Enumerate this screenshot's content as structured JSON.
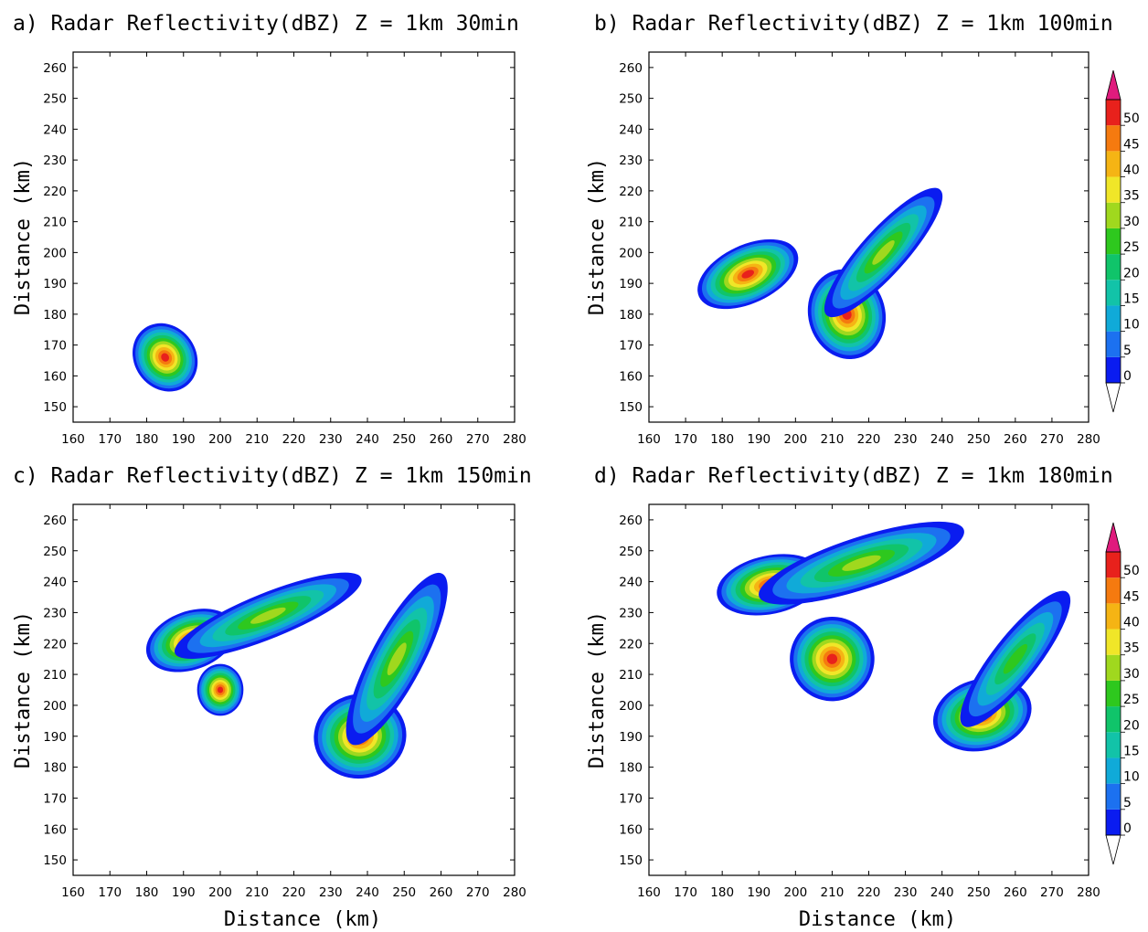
{
  "chart_data": [
    {
      "panel": "a",
      "type": "filled-contour",
      "title": "a) Radar Reflectivity(dBZ) Z = 1km 30min",
      "xlabel": "",
      "ylabel": "Distance (km)",
      "xlim": [
        160,
        280
      ],
      "ylim": [
        145,
        265
      ],
      "xticks": [
        160,
        170,
        180,
        190,
        200,
        210,
        220,
        230,
        240,
        250,
        260,
        270,
        280
      ],
      "yticks": [
        150,
        160,
        170,
        180,
        190,
        200,
        210,
        220,
        230,
        240,
        250,
        260
      ],
      "cells": [
        {
          "cx": 185,
          "cy": 166,
          "rx": 8,
          "ry": 11,
          "angle": 35,
          "max_dbz": 50
        }
      ],
      "colorbar": false
    },
    {
      "panel": "b",
      "type": "filled-contour",
      "title": "b) Radar Reflectivity(dBZ) Z = 1km 100min",
      "xlabel": "",
      "ylabel": "Distance (km)",
      "xlim": [
        160,
        280
      ],
      "ylim": [
        145,
        265
      ],
      "xticks": [
        160,
        170,
        180,
        190,
        200,
        210,
        220,
        230,
        240,
        250,
        260,
        270,
        280
      ],
      "yticks": [
        150,
        160,
        170,
        180,
        190,
        200,
        210,
        220,
        230,
        240,
        250,
        260
      ],
      "cells": [
        {
          "cx": 187,
          "cy": 193,
          "rx": 14,
          "ry": 9,
          "angle": 25,
          "max_dbz": 50
        },
        {
          "cx": 214,
          "cy": 180,
          "rx": 10,
          "ry": 14,
          "angle": 15,
          "max_dbz": 50
        },
        {
          "cx": 224,
          "cy": 200,
          "rx": 22,
          "ry": 7,
          "angle": 48,
          "max_dbz": 30
        }
      ],
      "colorbar": true
    },
    {
      "panel": "c",
      "type": "filled-contour",
      "title": "c) Radar Reflectivity(dBZ) Z = 1km 150min",
      "xlabel": "Distance (km)",
      "ylabel": "Distance (km)",
      "xlim": [
        160,
        280
      ],
      "ylim": [
        145,
        265
      ],
      "xticks": [
        160,
        170,
        180,
        190,
        200,
        210,
        220,
        230,
        240,
        250,
        260,
        270,
        280
      ],
      "yticks": [
        150,
        160,
        170,
        180,
        190,
        200,
        210,
        220,
        230,
        240,
        250,
        260
      ],
      "cells": [
        {
          "cx": 192,
          "cy": 221,
          "rx": 12,
          "ry": 9,
          "angle": 20,
          "max_dbz": 50
        },
        {
          "cx": 213,
          "cy": 229,
          "rx": 26,
          "ry": 7,
          "angle": 22,
          "max_dbz": 30
        },
        {
          "cx": 200,
          "cy": 205,
          "rx": 6,
          "ry": 8,
          "angle": 0,
          "max_dbz": 50
        },
        {
          "cx": 238,
          "cy": 190,
          "rx": 12,
          "ry": 13,
          "angle": 10,
          "max_dbz": 50
        },
        {
          "cx": 248,
          "cy": 215,
          "rx": 25,
          "ry": 8,
          "angle": 62,
          "max_dbz": 30
        }
      ],
      "colorbar": false
    },
    {
      "panel": "d",
      "type": "filled-contour",
      "title": "d) Radar Reflectivity(dBZ) Z = 1km 180min",
      "xlabel": "Distance (km)",
      "ylabel": "Distance (km)",
      "xlim": [
        160,
        280
      ],
      "ylim": [
        145,
        265
      ],
      "xticks": [
        160,
        170,
        180,
        190,
        200,
        210,
        220,
        230,
        240,
        250,
        260,
        270,
        280
      ],
      "yticks": [
        150,
        160,
        170,
        180,
        190,
        200,
        210,
        220,
        230,
        240,
        250,
        260
      ],
      "cells": [
        {
          "cx": 193,
          "cy": 239,
          "rx": 14,
          "ry": 9,
          "angle": 12,
          "max_dbz": 50
        },
        {
          "cx": 218,
          "cy": 246,
          "rx": 28,
          "ry": 8,
          "angle": 18,
          "max_dbz": 30
        },
        {
          "cx": 210,
          "cy": 215,
          "rx": 11,
          "ry": 13,
          "angle": 15,
          "max_dbz": 50
        },
        {
          "cx": 251,
          "cy": 197,
          "rx": 13,
          "ry": 11,
          "angle": 15,
          "max_dbz": 50
        },
        {
          "cx": 260,
          "cy": 215,
          "rx": 22,
          "ry": 7,
          "angle": 52,
          "max_dbz": 25
        }
      ],
      "colorbar": true
    }
  ],
  "colorbar": {
    "levels": [
      0,
      5,
      10,
      15,
      20,
      25,
      30,
      35,
      40,
      45,
      50
    ],
    "colors": [
      "#0a1cf0",
      "#1c71f0",
      "#10aad8",
      "#12c3a8",
      "#10c46a",
      "#2ec81e",
      "#a0d81e",
      "#f0e628",
      "#f5b414",
      "#f57a0f",
      "#e8211c",
      "#e01b7d"
    ]
  }
}
